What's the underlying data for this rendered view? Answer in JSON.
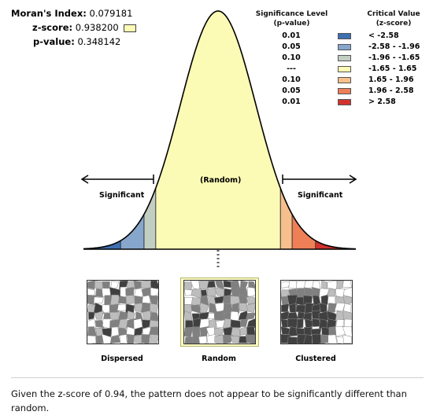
{
  "stats": {
    "morans_index_label": "Moran's Index:",
    "morans_index_value": "0.079181",
    "z_score_label": "z-score:",
    "z_score_value": "0.938200",
    "p_value_label": "p-value:",
    "p_value_value": "0.348142"
  },
  "legend": {
    "sig_header_line1": "Significance Level",
    "sig_header_line2": "(p-value)",
    "crit_header_line1": "Critical Value",
    "crit_header_line2": "(z-score)",
    "rows": [
      {
        "p": "0.01",
        "z": "< -2.58",
        "color": "#3e6fb0"
      },
      {
        "p": "0.05",
        "z": "-2.58 - -1.96",
        "color": "#86a6cc"
      },
      {
        "p": "0.10",
        "z": "-1.96 - -1.65",
        "color": "#c2cec2"
      },
      {
        "p": "---",
        "z": "-1.65 - 1.65",
        "color": "#fcfbb5"
      },
      {
        "p": "0.10",
        "z": "1.65 - 1.96",
        "color": "#f6bf8c"
      },
      {
        "p": "0.05",
        "z": "1.96 - 2.58",
        "color": "#ee7f57"
      },
      {
        "p": "0.01",
        "z": "> 2.58",
        "color": "#d2322d"
      }
    ]
  },
  "curve": {
    "random_label": "(Random)",
    "left_label": "Significant",
    "right_label": "Significant"
  },
  "maps": {
    "dispersed_label": "Dispersed",
    "random_label": "Random",
    "clustered_label": "Clustered"
  },
  "summary": "Given the z-score of 0.94, the pattern does not appear to be significantly different than random."
}
